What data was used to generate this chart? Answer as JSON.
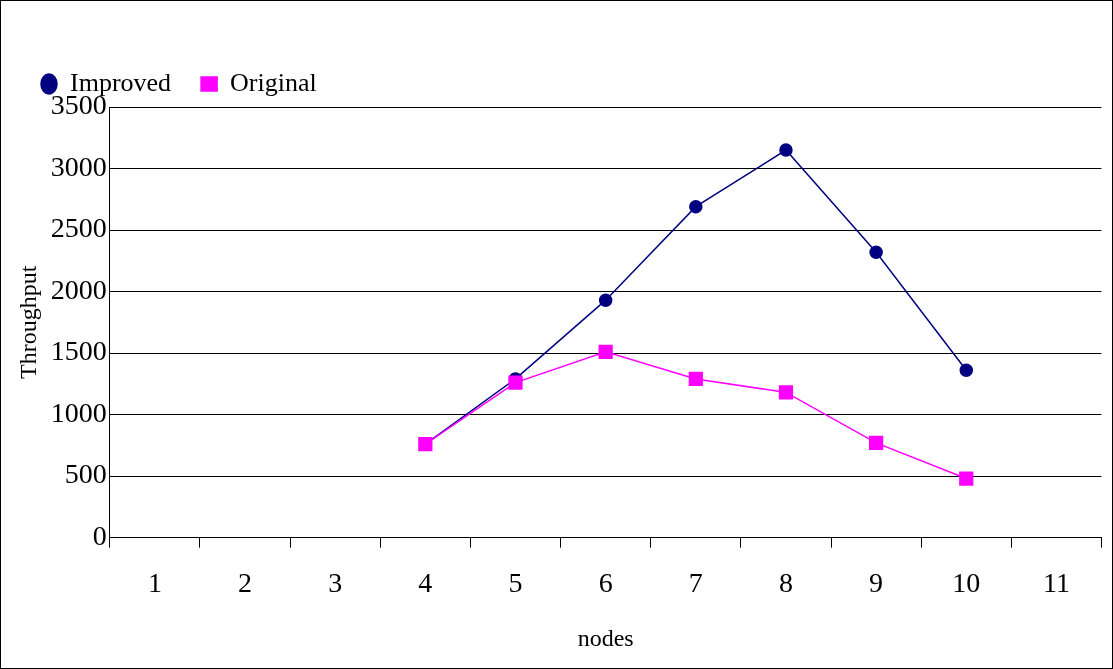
{
  "chart_data": {
    "type": "line",
    "xlabel": "nodes",
    "ylabel": "Throughput",
    "categories": [
      "1",
      "2",
      "3",
      "4",
      "5",
      "6",
      "7",
      "8",
      "9",
      "10",
      "11"
    ],
    "series": [
      {
        "name": "Improved",
        "color": "#000080",
        "marker": "circle",
        "values": [
          null,
          null,
          null,
          760,
          1290,
          1930,
          2690,
          3150,
          2320,
          1360,
          null
        ]
      },
      {
        "name": "Original",
        "color": "#ff00ff",
        "marker": "square",
        "values": [
          null,
          null,
          null,
          760,
          1260,
          1510,
          1290,
          1180,
          770,
          480,
          null
        ]
      }
    ],
    "ylim": [
      0,
      3500
    ],
    "yticks": [
      0,
      500,
      1000,
      1500,
      2000,
      2500,
      3000,
      3500
    ],
    "grid": "y",
    "legend": "top left"
  }
}
